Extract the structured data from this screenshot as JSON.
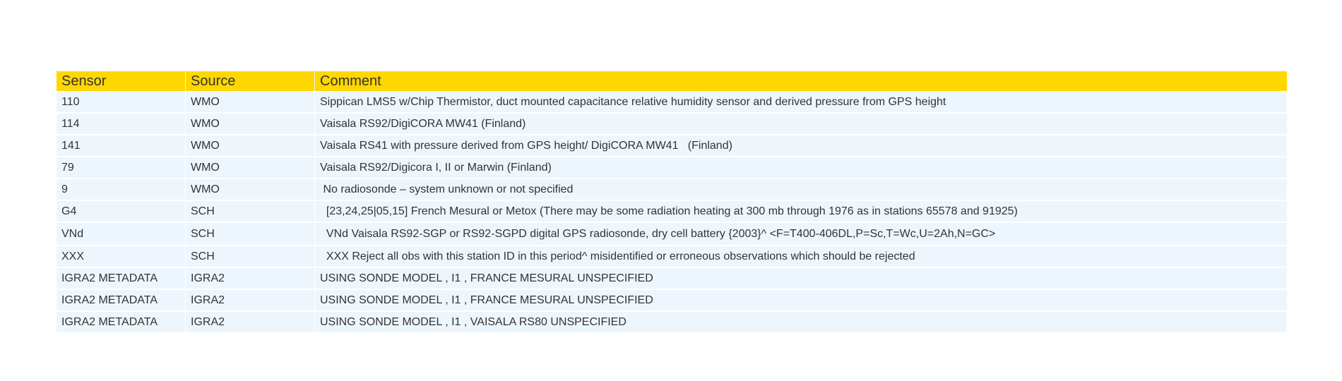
{
  "table": {
    "headers": {
      "sensor": "Sensor",
      "source": "Source",
      "comment": "Comment"
    },
    "rows": [
      {
        "sensor": "110",
        "source": "WMO",
        "comment": "Sippican LMS5 w/Chip Thermistor, duct mounted capacitance relative humidity sensor and derived pressure from GPS height"
      },
      {
        "sensor": "114",
        "source": "WMO",
        "comment": "Vaisala RS92/DigiCORA MW41 (Finland)"
      },
      {
        "sensor": "141",
        "source": "WMO",
        "comment": "Vaisala RS41 with pressure derived from GPS height/ DigiCORA MW41   (Finland)"
      },
      {
        "sensor": "79",
        "source": "WMO",
        "comment": "Vaisala RS92/Digicora I, II or Marwin (Finland)"
      },
      {
        "sensor": "9",
        "source": "WMO",
        "comment": " No radiosonde – system unknown or not specified"
      },
      {
        "sensor": "G4",
        "source": "SCH",
        "comment": "  [23,24,25|05,15] French Mesural or Metox (There may be some radiation heating at 300 mb through 1976 as in stations 65578 and 91925)"
      },
      {
        "sensor": "VNd",
        "source": "SCH",
        "comment": "  VNd Vaisala RS92-SGP or RS92-SGPD digital GPS radiosonde, dry cell battery {2003}^ <F=T400-406DL,P=Sc,T=Wc,U=2Ah,N=GC>"
      },
      {
        "sensor": "XXX",
        "source": "SCH",
        "comment": "  XXX Reject all obs with this station ID in this period^ misidentified or erroneous observations which should be rejected"
      },
      {
        "sensor": "IGRA2 METADATA",
        "source": "IGRA2",
        "comment": "USING SONDE MODEL , I1 , FRANCE MESURAL UNSPECIFIED"
      },
      {
        "sensor": "IGRA2 METADATA",
        "source": "IGRA2",
        "comment": "USING SONDE MODEL , I1 , FRANCE MESURAL UNSPECIFIED"
      },
      {
        "sensor": "IGRA2 METADATA",
        "source": "IGRA2",
        "comment": "USING SONDE MODEL , I1 , VAISALA RS80 UNSPECIFIED"
      }
    ]
  },
  "colors": {
    "header_bg": "#FFD700",
    "row_bg": "#EEF6FD",
    "text": "#333333"
  }
}
